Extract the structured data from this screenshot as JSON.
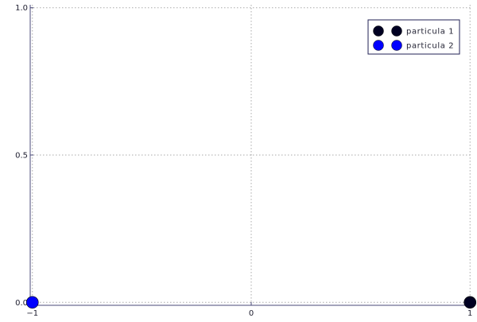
{
  "chart_data": {
    "type": "scatter",
    "title": "",
    "xlabel": "",
    "ylabel": "",
    "xlim": [
      -1.01,
      1.01
    ],
    "ylim": [
      -0.01,
      1.01
    ],
    "x_ticks": [
      -1,
      0,
      1
    ],
    "x_tick_labels": [
      "−1",
      "0",
      "1"
    ],
    "y_ticks": [
      0.0,
      0.5,
      1.0
    ],
    "y_tick_labels": [
      "0.0",
      "0.5",
      "1.0"
    ],
    "grid": true,
    "grid_style": "dotted",
    "legend_position": "top-right",
    "series": [
      {
        "name": "particula 1",
        "color": "#000022",
        "points": [
          {
            "x": 1,
            "y": 0
          }
        ]
      },
      {
        "name": "particula 2",
        "color": "#0000ff",
        "points": [
          {
            "x": -1,
            "y": 0
          }
        ]
      }
    ],
    "colors": {
      "axis": "#4a4a7a",
      "grid": "#aaaaaa",
      "legend_border": "#222255"
    }
  }
}
